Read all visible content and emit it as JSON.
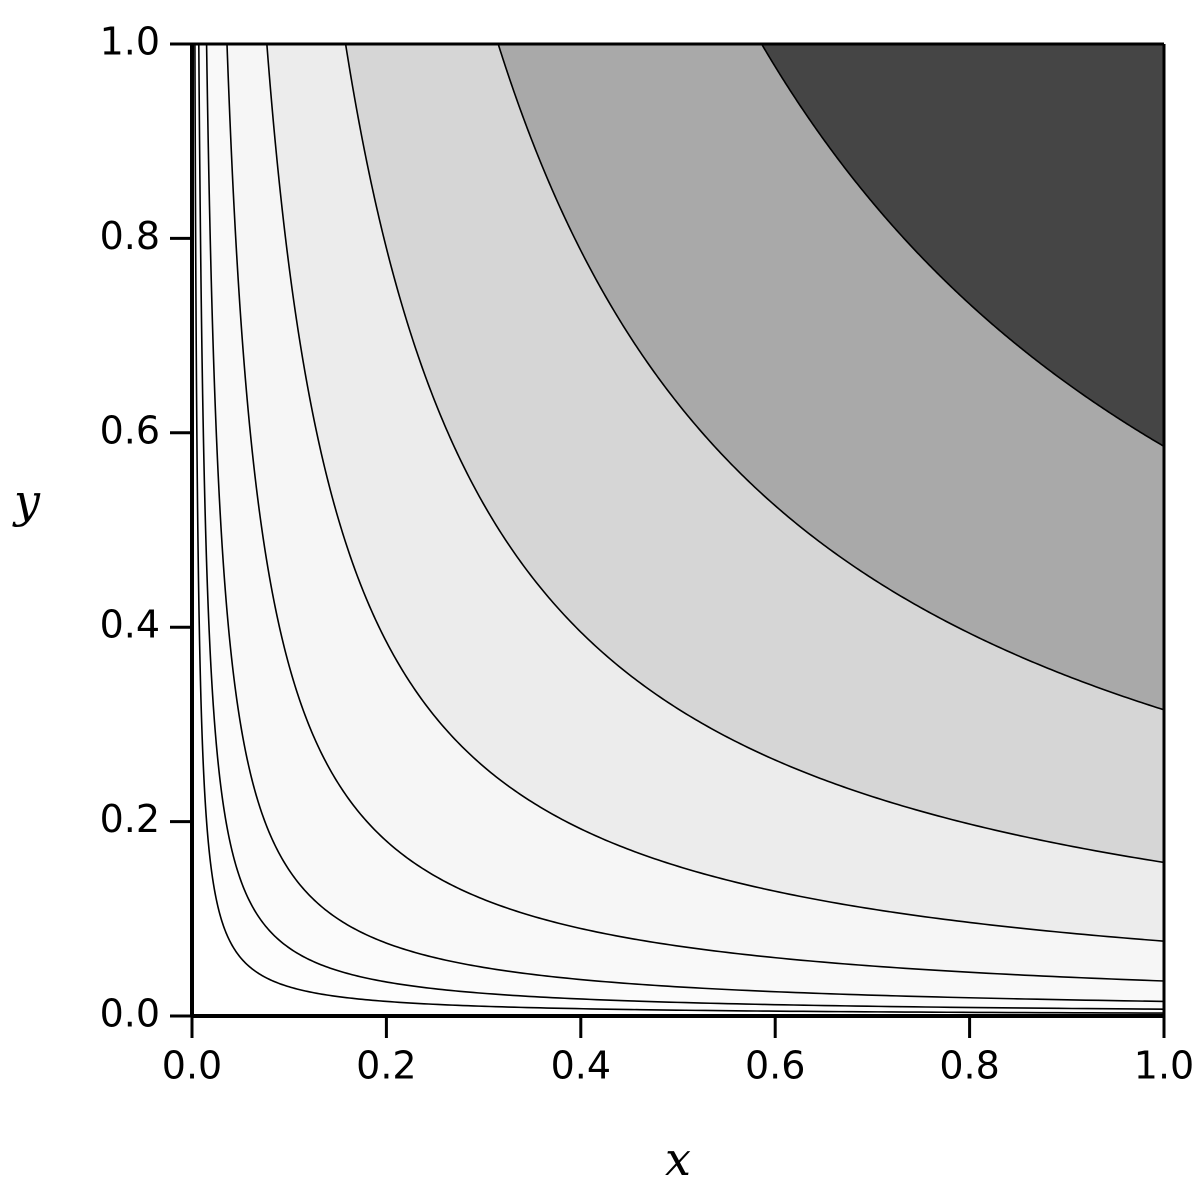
{
  "chart_data": {
    "type": "contour",
    "x_label": "x",
    "y_label": "y",
    "xlim": [
      0,
      1
    ],
    "ylim": [
      0,
      1
    ],
    "xticks": [
      {
        "value": 0,
        "label": "0.0"
      },
      {
        "value": 0.2,
        "label": "0.2"
      },
      {
        "value": 0.4,
        "label": "0.4"
      },
      {
        "value": 0.6,
        "label": "0.6"
      },
      {
        "value": 0.8,
        "label": "0.8"
      },
      {
        "value": 1,
        "label": "1.0"
      }
    ],
    "yticks": [
      {
        "value": 0,
        "label": "0.0"
      },
      {
        "value": 0.2,
        "label": "0.2"
      },
      {
        "value": 0.4,
        "label": "0.4"
      },
      {
        "value": 0.6,
        "label": "0.6"
      },
      {
        "value": 0.8,
        "label": "0.8"
      },
      {
        "value": 1,
        "label": "1.0"
      }
    ],
    "levels": [
      0.003,
      0.007,
      0.015,
      0.036,
      0.077,
      0.158,
      0.315,
      0.586
    ],
    "colors": [
      "#ffffff",
      "#fdfdfd",
      "#fbfbfb",
      "#f9f9f9",
      "#f6f6f6",
      "#ececec",
      "#d6d6d6",
      "#a9a9a9",
      "#454545"
    ],
    "line_color": "#000000"
  }
}
